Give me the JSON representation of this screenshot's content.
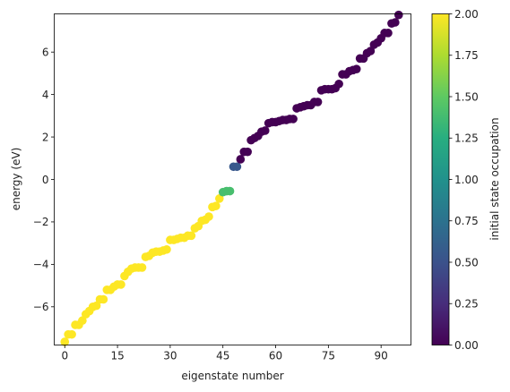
{
  "chart_data": {
    "type": "scatter",
    "title": "",
    "xlabel": "eigenstate number",
    "ylabel": "energy (eV)",
    "colorbar_label": "initial state occupation",
    "xlim": [
      -3,
      98.5
    ],
    "ylim": [
      -7.8,
      7.8
    ],
    "xticks": [
      0,
      15,
      30,
      45,
      60,
      75,
      90
    ],
    "yticks": [
      -6,
      -4,
      -2,
      0,
      2,
      4,
      6
    ],
    "yticklabels": [
      "−6",
      "−4",
      "−2",
      "0",
      "2",
      "4",
      "6"
    ],
    "colorbar_range": [
      0.0,
      2.0
    ],
    "colorbar_ticks": [
      "0.00",
      "0.25",
      "0.50",
      "0.75",
      "1.00",
      "1.25",
      "1.50",
      "1.75",
      "2.00"
    ],
    "colormap": "viridis",
    "grid": false,
    "x": [
      0,
      1,
      2,
      3,
      4,
      5,
      6,
      7,
      8,
      9,
      10,
      11,
      12,
      13,
      14,
      15,
      16,
      17,
      18,
      19,
      20,
      21,
      22,
      23,
      24,
      25,
      26,
      27,
      28,
      29,
      30,
      31,
      32,
      33,
      34,
      35,
      36,
      37,
      38,
      39,
      40,
      41,
      42,
      43,
      44,
      45,
      46,
      47,
      48,
      49,
      50,
      51,
      52,
      53,
      54,
      55,
      56,
      57,
      58,
      59,
      60,
      61,
      62,
      63,
      64,
      65,
      66,
      67,
      68,
      69,
      70,
      71,
      72,
      73,
      74,
      75,
      76,
      77,
      78,
      79,
      80,
      81,
      82,
      83,
      84,
      85,
      86,
      87,
      88,
      89,
      90,
      91,
      92,
      93,
      94,
      95
    ],
    "y": [
      -7.65,
      -7.3,
      -7.3,
      -6.85,
      -6.85,
      -6.65,
      -6.35,
      -6.2,
      -6.0,
      -5.95,
      -5.65,
      -5.65,
      -5.2,
      -5.2,
      -5.05,
      -4.95,
      -4.95,
      -4.55,
      -4.35,
      -4.2,
      -4.15,
      -4.15,
      -4.15,
      -3.65,
      -3.6,
      -3.45,
      -3.4,
      -3.4,
      -3.35,
      -3.3,
      -2.85,
      -2.85,
      -2.8,
      -2.75,
      -2.75,
      -2.65,
      -2.65,
      -2.3,
      -2.2,
      -1.95,
      -1.9,
      -1.75,
      -1.3,
      -1.25,
      -0.9,
      -0.6,
      -0.55,
      -0.55,
      0.6,
      0.6,
      0.95,
      1.3,
      1.3,
      1.85,
      1.95,
      2.05,
      2.25,
      2.3,
      2.65,
      2.7,
      2.7,
      2.75,
      2.8,
      2.8,
      2.85,
      2.85,
      3.35,
      3.4,
      3.45,
      3.5,
      3.5,
      3.65,
      3.65,
      4.2,
      4.25,
      4.25,
      4.25,
      4.3,
      4.5,
      4.95,
      4.95,
      5.1,
      5.15,
      5.2,
      5.7,
      5.7,
      5.95,
      6.05,
      6.35,
      6.45,
      6.65,
      6.9,
      6.9,
      7.35,
      7.4,
      7.75
    ],
    "occupation": [
      2,
      2,
      2,
      2,
      2,
      2,
      2,
      2,
      2,
      2,
      2,
      2,
      2,
      2,
      2,
      2,
      2,
      2,
      2,
      2,
      2,
      2,
      2,
      2,
      2,
      2,
      2,
      2,
      2,
      2,
      2,
      2,
      2,
      2,
      2,
      2,
      2,
      2,
      2,
      2,
      2,
      2,
      2,
      2,
      2,
      1.4,
      1.4,
      1.4,
      0.55,
      0.55,
      0,
      0,
      0,
      0,
      0,
      0,
      0,
      0,
      0,
      0,
      0,
      0,
      0,
      0,
      0,
      0,
      0,
      0,
      0,
      0,
      0,
      0,
      0,
      0,
      0,
      0,
      0,
      0,
      0,
      0,
      0,
      0,
      0,
      0,
      0,
      0,
      0,
      0,
      0,
      0,
      0,
      0,
      0,
      0,
      0,
      0
    ]
  }
}
